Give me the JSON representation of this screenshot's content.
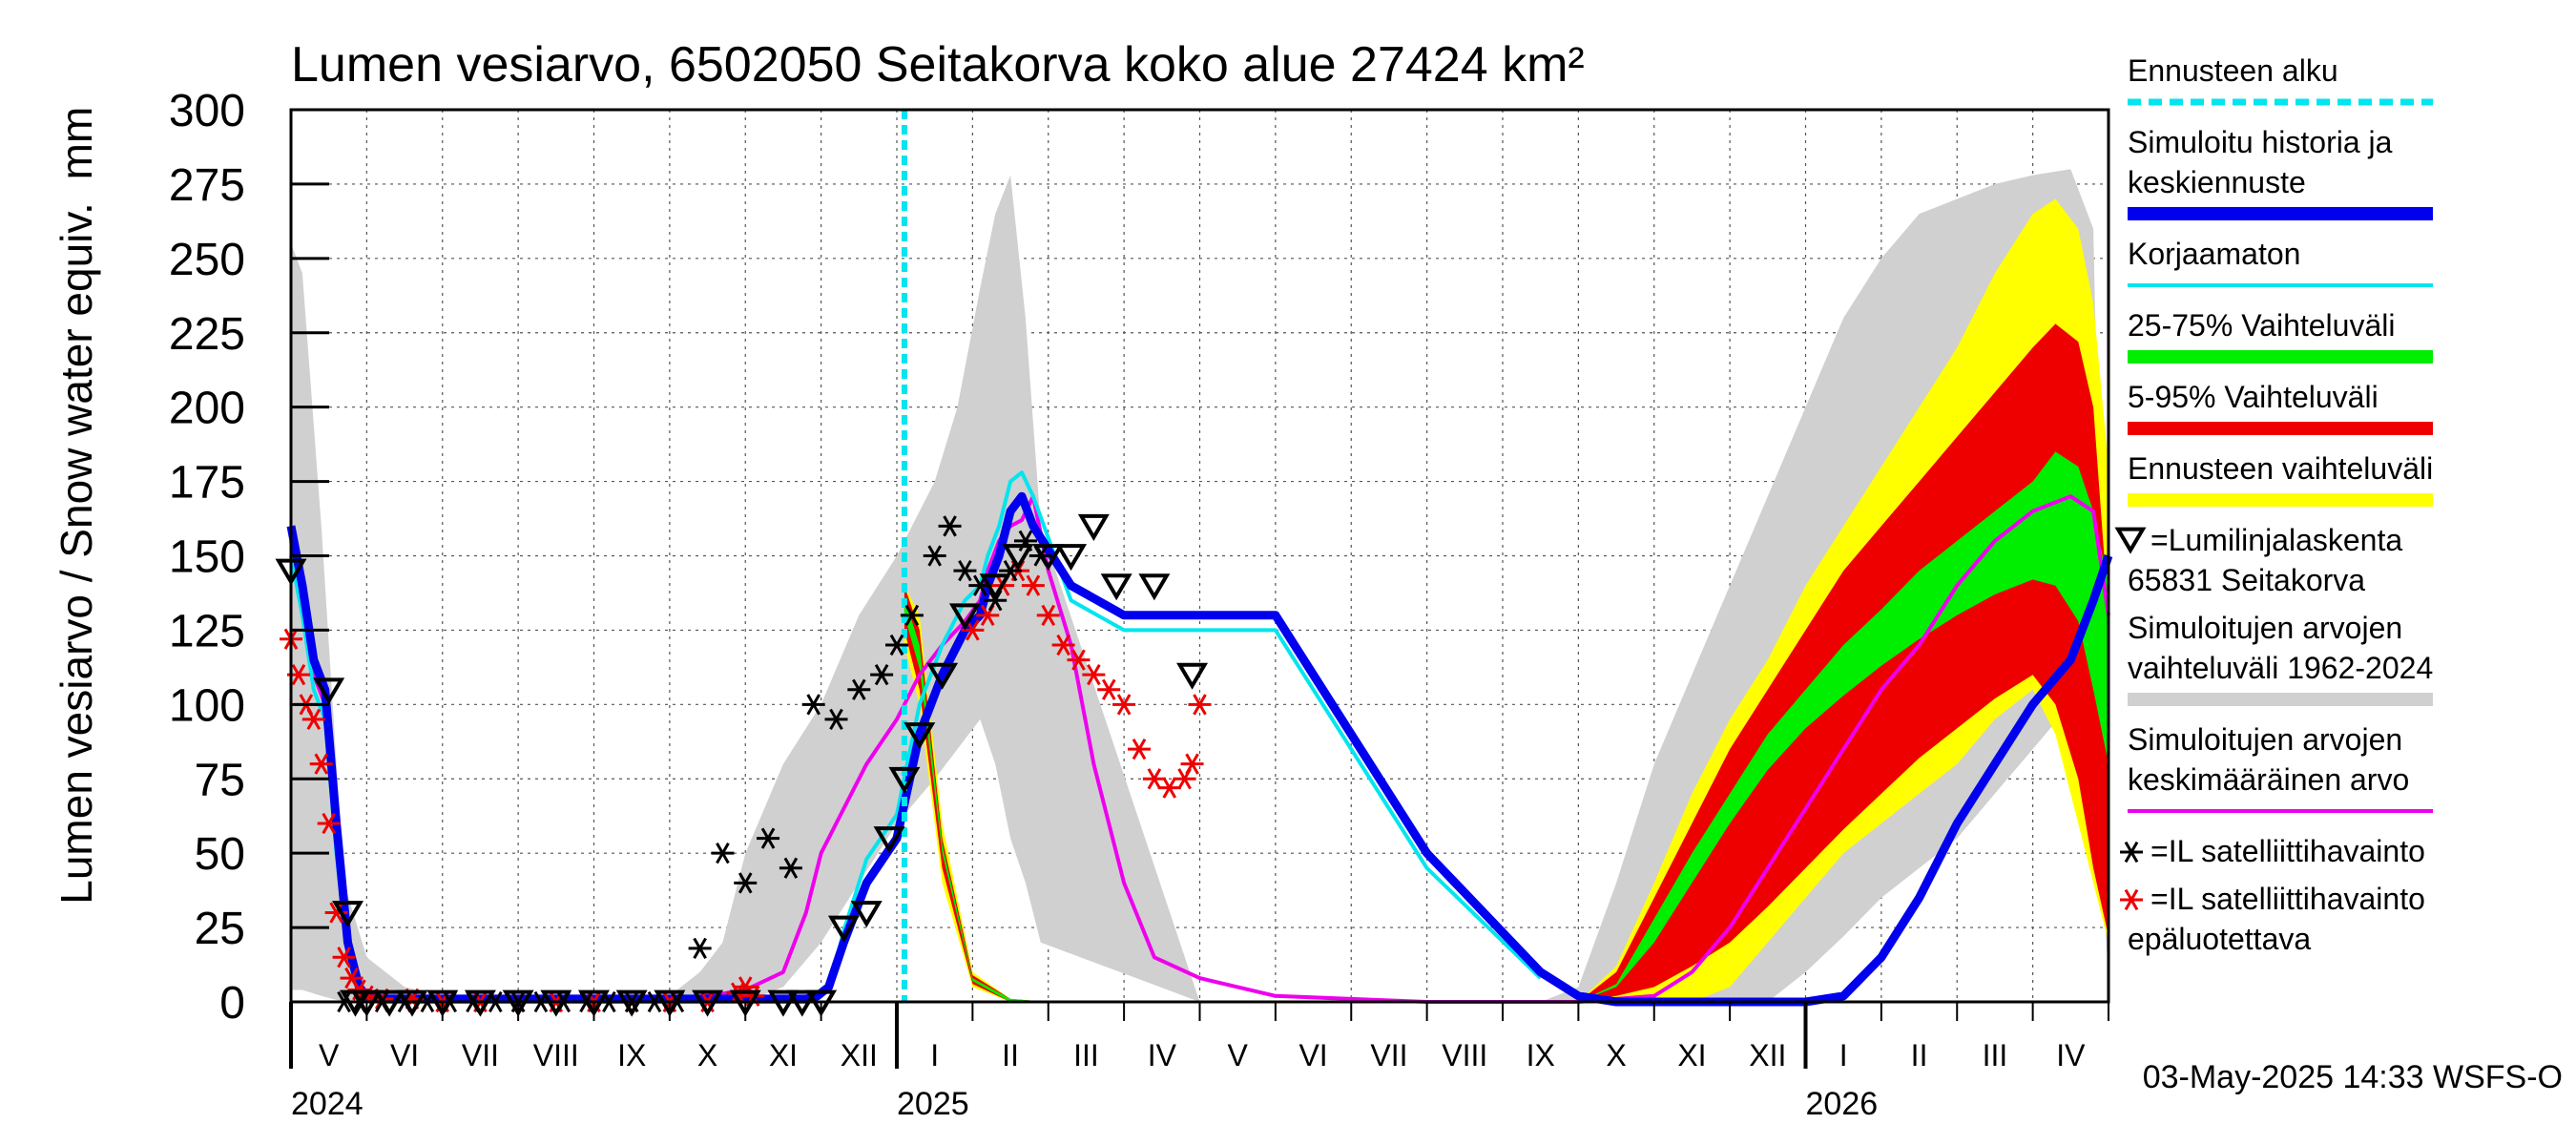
{
  "chart_data": {
    "type": "area",
    "title": "Lumen vesiarvo, 6502050 Seitakorva koko alue 27424 km²",
    "ylabel": "Lumen vesiarvo / Snow water equiv.",
    "yunit": "mm",
    "ylim": [
      0,
      300
    ],
    "yticks": [
      0,
      25,
      50,
      75,
      100,
      125,
      150,
      175,
      200,
      225,
      250,
      275,
      300
    ],
    "x_range_months": [
      4,
      28
    ],
    "forecast_start_month": 12.1,
    "months": [
      "V",
      "VI",
      "VII",
      "VIII",
      "IX",
      "X",
      "XI",
      "XII",
      "I",
      "II",
      "III",
      "IV",
      "V",
      "VI",
      "VII",
      "VIII",
      "IX",
      "X",
      "XI",
      "XII",
      "I",
      "II",
      "III",
      "IV"
    ],
    "years": [
      {
        "label": "2024",
        "month": 4
      },
      {
        "label": "2025",
        "month": 12
      },
      {
        "label": "2026",
        "month": 24
      }
    ],
    "timestamp": "03-May-2025 14:33 WSFS-O",
    "legend": [
      {
        "label": "Ennusteen alku",
        "color": "#00e5ee",
        "style": "dashed"
      },
      {
        "label": "Simuloitu historia ja",
        "label2": "keskiennuste",
        "color": "#0000ee",
        "style": "thick"
      },
      {
        "label": "Korjaamaton",
        "color": "#00e5ee",
        "style": "line"
      },
      {
        "label": "25-75% Vaihteluväli",
        "color": "#00ee00",
        "style": "thick"
      },
      {
        "label": "5-95% Vaihteluväli",
        "color": "#ee0000",
        "style": "thick"
      },
      {
        "label": "Ennusteen vaihteluväli",
        "color": "#ffff00",
        "style": "thick"
      },
      {
        "label": "=Lumilinjalaskenta",
        "label2": "65831 Seitakorva",
        "color": "#000000",
        "style": "triangle"
      },
      {
        "label": "Simuloitujen arvojen",
        "label2": "vaihteluväli 1962-2024",
        "color": "#d0d0d0",
        "style": "thick"
      },
      {
        "label": "Simuloitujen arvojen",
        "label2": "keskimääräinen arvo",
        "color": "#ee00ee",
        "style": "line"
      },
      {
        "label": "=IL satelliittihavainto",
        "color": "#000000",
        "style": "star"
      },
      {
        "label": "=IL satelliittihavainto",
        "label2": "epäluotettava",
        "color": "#ee0000",
        "style": "star"
      }
    ],
    "series": {
      "hist_range": {
        "name": "Simuloitujen arvojen vaihteluväli 1962-2024",
        "color": "#d0d0d0",
        "x": [
          4.0,
          4.15,
          4.4,
          4.7,
          5.0,
          5.5,
          6,
          7,
          8,
          9,
          9.4,
          9.7,
          10.0,
          10.5,
          11.0,
          11.5,
          12.0,
          12.5,
          12.8,
          13.1,
          13.3,
          13.5,
          13.7,
          13.9,
          16,
          17,
          19,
          20.5,
          21.0,
          21.5,
          22.0,
          22.5,
          23.0,
          23.5,
          24.0,
          24.5,
          25.0,
          25.5,
          26.0,
          26.5,
          27.0,
          27.5,
          27.8,
          28.0
        ],
        "low": [
          4,
          4,
          2,
          0,
          0,
          0,
          0,
          0,
          0,
          0,
          0,
          0,
          0,
          5,
          20,
          40,
          60,
          75,
          85,
          95,
          80,
          55,
          40,
          20,
          0,
          0,
          0,
          0,
          0,
          0,
          0,
          0,
          0,
          0,
          10,
          22,
          35,
          45,
          55,
          70,
          85,
          100,
          90,
          8
        ],
        "high": [
          255,
          245,
          160,
          40,
          15,
          5,
          2,
          2,
          2,
          2,
          10,
          20,
          50,
          80,
          100,
          130,
          150,
          175,
          200,
          240,
          265,
          278,
          230,
          160,
          0,
          0,
          0,
          0,
          5,
          40,
          80,
          110,
          140,
          170,
          200,
          230,
          250,
          265,
          270,
          275,
          278,
          280,
          260,
          15
        ]
      },
      "forecast_range": {
        "name": "Ennusteen vaihteluväli",
        "color": "#ffff00",
        "x": [
          12.1,
          12.3,
          12.6,
          13.0,
          13.5,
          14.0,
          20.5,
          21.0,
          21.5,
          22.0,
          22.5,
          23.0,
          23.5,
          24.0,
          24.5,
          25.0,
          25.5,
          26.0,
          26.5,
          27.0,
          27.3,
          27.6,
          27.8,
          28.0
        ],
        "low": [
          120,
          100,
          40,
          5,
          0,
          0,
          0,
          0,
          0,
          0,
          0,
          5,
          20,
          35,
          50,
          60,
          70,
          80,
          95,
          105,
          90,
          60,
          40,
          20
        ],
        "high": [
          140,
          130,
          60,
          10,
          1,
          0,
          0,
          0,
          12,
          40,
          70,
          95,
          115,
          140,
          160,
          180,
          200,
          220,
          245,
          265,
          270,
          260,
          235,
          180
        ]
      },
      "range_5_95": {
        "name": "5-95% Vaihteluväli",
        "color": "#ee0000",
        "x": [
          12.1,
          12.3,
          12.6,
          13.0,
          13.5,
          14.0,
          20.5,
          21.0,
          21.5,
          22.0,
          22.5,
          23.0,
          23.5,
          24.0,
          24.5,
          25.0,
          25.5,
          26.0,
          26.5,
          27.0,
          27.3,
          27.6,
          27.8,
          28.0
        ],
        "low": [
          125,
          105,
          45,
          6,
          0,
          0,
          0,
          0,
          2,
          5,
          12,
          20,
          32,
          45,
          58,
          70,
          82,
          92,
          102,
          110,
          100,
          75,
          45,
          22
        ],
        "high": [
          140,
          125,
          55,
          9,
          1,
          0,
          0,
          0,
          10,
          35,
          60,
          85,
          105,
          125,
          145,
          160,
          175,
          190,
          205,
          220,
          228,
          222,
          200,
          130
        ]
      },
      "range_25_75": {
        "name": "25-75% Vaihteluväli",
        "color": "#00ee00",
        "x": [
          12.1,
          12.3,
          12.6,
          13.0,
          13.5,
          14.0,
          20.5,
          21.0,
          21.5,
          22.0,
          22.5,
          23.0,
          23.5,
          24.0,
          24.5,
          25.0,
          25.5,
          26.0,
          26.5,
          27.0,
          27.3,
          27.6,
          27.8,
          28.0
        ],
        "low": [
          130,
          112,
          50,
          7,
          0,
          0,
          0,
          0,
          5,
          20,
          40,
          60,
          78,
          92,
          103,
          113,
          122,
          130,
          137,
          142,
          140,
          128,
          105,
          80
        ],
        "high": [
          136,
          120,
          53,
          8,
          1,
          0,
          0,
          0,
          6,
          28,
          50,
          70,
          90,
          105,
          120,
          132,
          145,
          155,
          165,
          175,
          185,
          180,
          165,
          140
        ]
      },
      "simulated": {
        "name": "Simuloitu historia ja keskiennuste",
        "color": "#0000ee",
        "x": [
          4.0,
          4.15,
          4.3,
          4.45,
          4.6,
          4.75,
          4.9,
          5.0,
          5.2,
          6,
          7,
          8,
          9,
          10.0,
          10.5,
          10.8,
          10.95,
          11.0,
          11.1,
          11.3,
          11.6,
          12.0,
          12.3,
          12.6,
          12.9,
          13.1,
          13.2,
          13.35,
          13.5,
          13.65,
          13.8,
          14.3,
          15,
          17,
          19,
          20.5,
          21.0,
          21.5,
          22.0,
          22.5,
          23.0,
          23.5,
          24.0,
          24.5,
          25.0,
          25.5,
          26.0,
          26.5,
          27.0,
          27.5,
          27.8,
          28.0
        ],
        "y": [
          160,
          140,
          115,
          105,
          60,
          20,
          5,
          2,
          1,
          1,
          1,
          1,
          1,
          1,
          1,
          1,
          2,
          3,
          5,
          20,
          40,
          55,
          90,
          110,
          125,
          130,
          140,
          150,
          165,
          170,
          160,
          140,
          130,
          130,
          50,
          10,
          2,
          0,
          0,
          0,
          0,
          0,
          0,
          2,
          15,
          35,
          60,
          80,
          100,
          115,
          135,
          150
        ]
      },
      "uncorrected": {
        "name": "Korjaamaton",
        "color": "#00e5ee",
        "x": [
          4.0,
          4.15,
          4.3,
          4.45,
          4.6,
          4.75,
          4.9,
          5.0,
          5.2,
          6,
          7,
          8,
          9,
          10.0,
          10.5,
          10.8,
          10.95,
          11.0,
          11.1,
          11.3,
          11.6,
          12.0,
          12.3,
          12.6,
          12.9,
          13.1,
          13.2,
          13.35,
          13.5,
          13.65,
          13.8,
          14.3,
          15,
          17,
          19,
          20.5
        ],
        "y": [
          150,
          130,
          105,
          95,
          50,
          15,
          3,
          1,
          0,
          0,
          0,
          0,
          0,
          0,
          0,
          0,
          1,
          2,
          4,
          24,
          48,
          63,
          100,
          120,
          135,
          140,
          150,
          160,
          175,
          178,
          170,
          135,
          125,
          125,
          45,
          8
        ]
      },
      "mean": {
        "name": "Simuloitujen arvojen keskimääräinen arvo",
        "color": "#ee00ee",
        "x": [
          4.0,
          4.15,
          4.3,
          4.45,
          4.6,
          4.75,
          4.9,
          5.0,
          5.2,
          6,
          7,
          8,
          9,
          9.5,
          10.0,
          10.5,
          10.8,
          11.0,
          11.3,
          11.6,
          12.0,
          12.3,
          12.6,
          12.9,
          13.1,
          13.2,
          13.35,
          13.5,
          13.65,
          13.8,
          14.0,
          14.3,
          14.6,
          15.0,
          15.4,
          16,
          17,
          19,
          21.0,
          22.0,
          22.5,
          23.0,
          23.5,
          24.0,
          24.5,
          25.0,
          25.5,
          26.0,
          26.5,
          27.0,
          27.5,
          27.8,
          28.0
        ],
        "y": [
          155,
          135,
          110,
          100,
          55,
          18,
          4,
          2,
          1,
          1,
          1,
          1,
          1,
          2,
          4,
          10,
          30,
          50,
          65,
          80,
          95,
          110,
          120,
          128,
          135,
          145,
          155,
          160,
          162,
          170,
          145,
          120,
          80,
          40,
          15,
          8,
          2,
          0,
          0,
          2,
          10,
          25,
          45,
          65,
          85,
          105,
          120,
          140,
          155,
          165,
          170,
          165,
          130
        ]
      }
    },
    "obs_snow_course": {
      "name": "Lumilinjalaskenta 65831 Seitakorva",
      "x": [
        4.0,
        4.5,
        4.75,
        4.85,
        5.0,
        5.3,
        5.6,
        6.0,
        6.5,
        7.0,
        7.5,
        8.0,
        8.5,
        9.0,
        9.5,
        10.0,
        10.5,
        10.75,
        11.0,
        11.3,
        11.6,
        11.9,
        12.1,
        12.3,
        12.6,
        12.9,
        13.3,
        13.6,
        14.0,
        14.3,
        14.6,
        14.9,
        15.4,
        15.9
      ],
      "y": [
        145,
        105,
        30,
        0,
        0,
        0,
        0,
        0,
        0,
        0,
        0,
        0,
        0,
        0,
        0,
        0,
        0,
        0,
        0,
        25,
        30,
        55,
        75,
        90,
        110,
        130,
        140,
        150,
        150,
        150,
        160,
        140,
        140,
        110
      ]
    },
    "obs_satellite": {
      "name": "IL satelliittihavainto",
      "x": [
        4.7,
        4.9,
        5.2,
        5.5,
        5.8,
        6.1,
        6.4,
        6.7,
        7.0,
        7.3,
        7.6,
        7.9,
        8.2,
        8.5,
        8.8,
        9.1,
        9.4,
        9.7,
        10.0,
        10.3,
        10.6,
        10.9,
        11.2,
        11.5,
        11.8,
        12.0,
        12.2,
        12.5,
        12.7,
        12.9,
        13.1,
        13.3,
        13.5,
        13.7,
        13.9
      ],
      "y": [
        0,
        0,
        0,
        0,
        0,
        0,
        0,
        0,
        0,
        0,
        0,
        0,
        0,
        0,
        0,
        0,
        18,
        50,
        40,
        55,
        45,
        100,
        95,
        105,
        110,
        120,
        130,
        150,
        160,
        145,
        140,
        135,
        145,
        155,
        150
      ]
    },
    "obs_satellite_unreliable": {
      "name": "IL satelliittihavainto epäluotettava",
      "x": [
        4.0,
        4.1,
        4.2,
        4.3,
        4.4,
        4.5,
        4.6,
        4.7,
        4.8,
        4.9,
        5.0,
        5.2,
        5.6,
        6.0,
        6.5,
        7.0,
        7.5,
        8.0,
        8.5,
        9.0,
        9.5,
        9.9,
        10.0,
        10.1,
        13.0,
        13.2,
        13.4,
        13.6,
        13.8,
        14.0,
        14.2,
        14.4,
        14.6,
        14.8,
        15.0,
        15.2,
        15.4,
        15.6,
        15.8,
        15.9,
        16.0
      ],
      "y": [
        122,
        110,
        100,
        95,
        80,
        60,
        30,
        15,
        8,
        4,
        2,
        1,
        1,
        0,
        0,
        0,
        0,
        0,
        0,
        0,
        0,
        3,
        5,
        2,
        125,
        130,
        140,
        145,
        140,
        130,
        120,
        115,
        110,
        105,
        100,
        85,
        75,
        72,
        75,
        80,
        100
      ]
    }
  }
}
